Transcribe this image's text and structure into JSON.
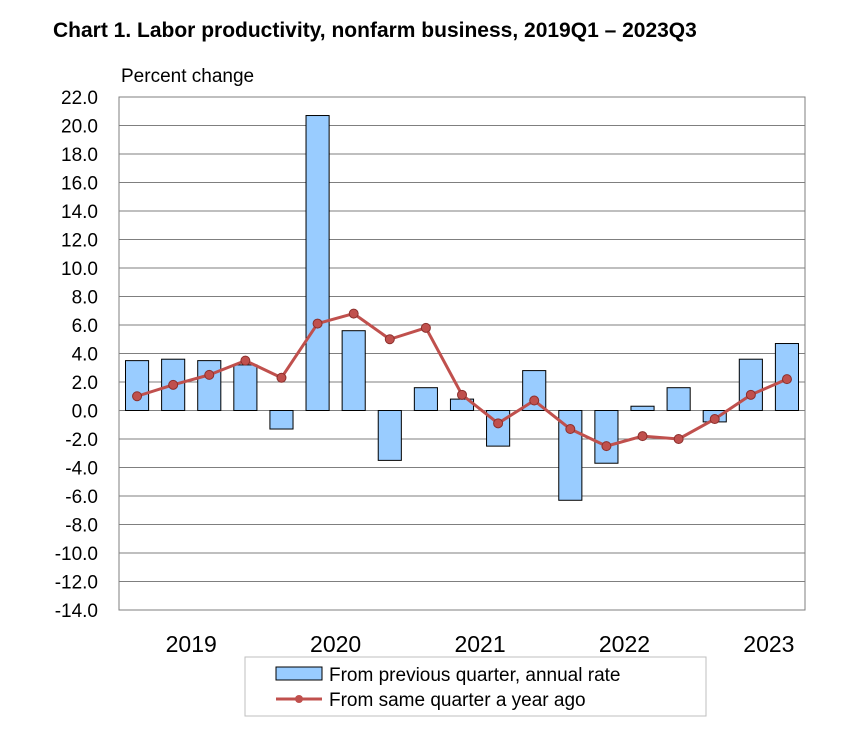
{
  "chart_data": {
    "type": "bar+line",
    "title": "Chart  1. Labor productivity, nonfarm business, 2019Q1 – 2023Q3",
    "ylabel": "Percent change",
    "xlabel": "",
    "ylim": [
      -14,
      22
    ],
    "ystep": 2,
    "yticks": [
      "22.0",
      "20.0",
      "18.0",
      "16.0",
      "14.0",
      "12.0",
      "10.0",
      "8.0",
      "6.0",
      "4.0",
      "2.0",
      "0.0",
      "-2.0",
      "-4.0",
      "-6.0",
      "-8.0",
      "-10.0",
      "-12.0",
      "-14.0"
    ],
    "grid": true,
    "year_labels": [
      "2019",
      "2020",
      "2021",
      "2022",
      "2023"
    ],
    "quarters": [
      "2019Q1",
      "2019Q2",
      "2019Q3",
      "2019Q4",
      "2020Q1",
      "2020Q2",
      "2020Q3",
      "2020Q4",
      "2021Q1",
      "2021Q2",
      "2021Q3",
      "2021Q4",
      "2022Q1",
      "2022Q2",
      "2022Q3",
      "2022Q4",
      "2023Q1",
      "2023Q2",
      "2023Q3"
    ],
    "series": [
      {
        "name": "From previous quarter, annual rate",
        "type": "bar",
        "color": "#99ccff",
        "values": [
          3.5,
          3.6,
          3.5,
          3.2,
          -1.3,
          20.7,
          5.6,
          -3.5,
          1.6,
          0.8,
          -2.5,
          2.8,
          -6.3,
          -3.7,
          0.3,
          1.6,
          -0.8,
          3.6,
          4.7
        ]
      },
      {
        "name": "From same quarter a year ago",
        "type": "line",
        "color": "#c0504d",
        "values": [
          1.0,
          1.8,
          2.5,
          3.5,
          2.3,
          6.1,
          6.8,
          5.0,
          5.8,
          1.1,
          -0.9,
          0.7,
          -1.3,
          -2.5,
          -1.8,
          -2.0,
          -0.6,
          1.1,
          2.2
        ]
      }
    ],
    "legend_position": "bottom"
  }
}
